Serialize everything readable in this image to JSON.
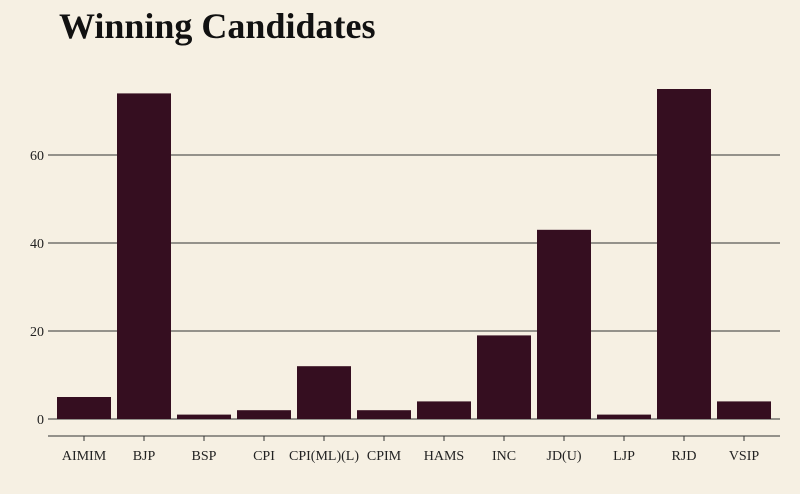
{
  "title": "Winning Candidates",
  "chart_data": {
    "type": "bar",
    "title": "Winning Candidates",
    "xlabel": "",
    "ylabel": "",
    "categories": [
      "AIMIM",
      "BJP",
      "BSP",
      "CPI",
      "CPI(ML)(L)",
      "CPIM",
      "HAMS",
      "INC",
      "JD(U)",
      "LJP",
      "RJD",
      "VSIP"
    ],
    "values": [
      5,
      74,
      1,
      2,
      12,
      2,
      4,
      19,
      43,
      1,
      75,
      4
    ],
    "ylim": [
      0,
      80
    ],
    "yticks": [
      0,
      20,
      40,
      60
    ],
    "grid": true,
    "bar_color": "#350e20",
    "background": "#f6f0e3"
  }
}
